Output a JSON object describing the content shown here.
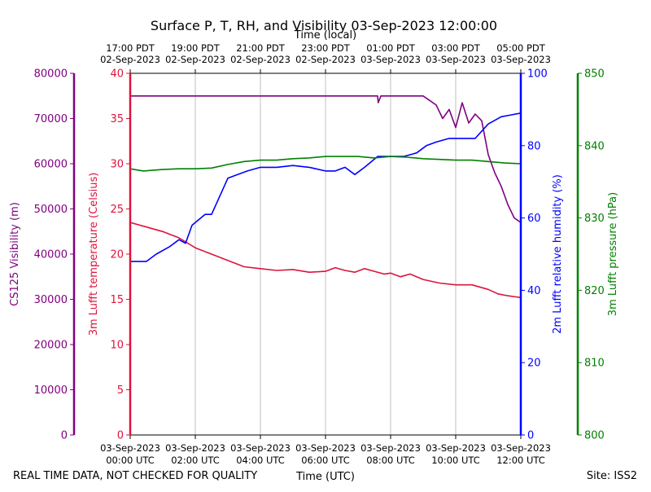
{
  "chart_data": {
    "type": "line",
    "title": "Surface P, T, RH, and Visibility 03-Sep-2023 12:00:00",
    "xlabel": "Time (UTC)",
    "top_xlabel": "Time (local)",
    "x_ticks_utc": [
      {
        "date": "03-Sep-2023",
        "time": "00:00 UTC"
      },
      {
        "date": "03-Sep-2023",
        "time": "02:00 UTC"
      },
      {
        "date": "03-Sep-2023",
        "time": "04:00 UTC"
      },
      {
        "date": "03-Sep-2023",
        "time": "06:00 UTC"
      },
      {
        "date": "03-Sep-2023",
        "time": "08:00 UTC"
      },
      {
        "date": "03-Sep-2023",
        "time": "10:00 UTC"
      },
      {
        "date": "03-Sep-2023",
        "time": "12:00 UTC"
      }
    ],
    "x_ticks_local": [
      {
        "time": "17:00 PDT",
        "date": "02-Sep-2023"
      },
      {
        "time": "19:00 PDT",
        "date": "02-Sep-2023"
      },
      {
        "time": "21:00 PDT",
        "date": "02-Sep-2023"
      },
      {
        "time": "23:00 PDT",
        "date": "02-Sep-2023"
      },
      {
        "time": "01:00 PDT",
        "date": "03-Sep-2023"
      },
      {
        "time": "03:00 PDT",
        "date": "03-Sep-2023"
      },
      {
        "time": "05:00 PDT",
        "date": "03-Sep-2023"
      }
    ],
    "xlim_hours_utc": [
      0,
      12
    ],
    "grid": "x-only",
    "axes": [
      {
        "key": "vis",
        "label": "CS125 Visibility (m)",
        "color": "#800080",
        "ylim": [
          0,
          80000
        ],
        "ticks": [
          0,
          10000,
          20000,
          30000,
          40000,
          50000,
          60000,
          70000,
          80000
        ]
      },
      {
        "key": "temp",
        "label": "3m Lufft temperature (Celsius)",
        "color": "#dc143c",
        "ylim": [
          0,
          40
        ],
        "ticks": [
          0,
          5,
          10,
          15,
          20,
          25,
          30,
          35,
          40
        ]
      },
      {
        "key": "rh",
        "label": "2m Lufft relative humidity (%)",
        "color": "#0000ff",
        "ylim": [
          0,
          100
        ],
        "ticks": [
          0,
          20,
          40,
          60,
          80,
          100
        ]
      },
      {
        "key": "pres",
        "label": "3m Lufft pressure (hPa)",
        "color": "#008000",
        "ylim": [
          800,
          850
        ],
        "ticks": [
          800,
          810,
          820,
          830,
          840,
          850
        ]
      }
    ],
    "series": [
      {
        "axis": "vis",
        "color": "#800080",
        "x": [
          0,
          1,
          2,
          3,
          4,
          5,
          6,
          7,
          7.6,
          7.62,
          7.7,
          8,
          9,
          9.4,
          9.6,
          9.8,
          10,
          10.2,
          10.4,
          10.6,
          10.8,
          11,
          11.2,
          11.4,
          11.6,
          11.8,
          12
        ],
        "y": [
          75000,
          75000,
          75000,
          75000,
          75000,
          75000,
          75000,
          75000,
          75000,
          73500,
          75000,
          75000,
          75000,
          73000,
          70000,
          72000,
          68000,
          73500,
          69000,
          71000,
          69500,
          62000,
          58000,
          55000,
          51000,
          48000,
          47000
        ]
      },
      {
        "axis": "temp",
        "color": "#dc143c",
        "x": [
          0,
          0.5,
          1,
          1.5,
          2,
          2.5,
          3,
          3.5,
          4,
          4.5,
          5,
          5.5,
          6,
          6.3,
          6.6,
          6.9,
          7.2,
          7.5,
          7.8,
          8,
          8.3,
          8.6,
          9,
          9.5,
          10,
          10.5,
          11,
          11.3,
          11.6,
          12
        ],
        "y": [
          23.5,
          23.0,
          22.5,
          21.8,
          20.7,
          20.0,
          19.3,
          18.6,
          18.4,
          18.2,
          18.3,
          18.0,
          18.1,
          18.5,
          18.2,
          18.0,
          18.4,
          18.1,
          17.8,
          17.9,
          17.5,
          17.8,
          17.2,
          16.8,
          16.6,
          16.6,
          16.1,
          15.6,
          15.4,
          15.2
        ]
      },
      {
        "axis": "rh",
        "color": "#0000ff",
        "x": [
          0,
          0.5,
          0.8,
          1.2,
          1.5,
          1.7,
          1.9,
          2.3,
          2.5,
          2.7,
          3.0,
          3.3,
          3.6,
          4.0,
          4.5,
          5.0,
          5.5,
          6.0,
          6.3,
          6.6,
          6.9,
          7.2,
          7.6,
          8.0,
          8.4,
          8.8,
          9.1,
          9.4,
          9.8,
          10.2,
          10.6,
          11.0,
          11.4,
          11.7,
          12
        ],
        "y": [
          48,
          48,
          50,
          52,
          54,
          53,
          58,
          61,
          61,
          65,
          71,
          72,
          73,
          74,
          74,
          74.5,
          74,
          73,
          73,
          74,
          72,
          74,
          77,
          77,
          77,
          78,
          80,
          81,
          82,
          82,
          82,
          86,
          88,
          88.5,
          89
        ]
      },
      {
        "axis": "pres",
        "color": "#008000",
        "x": [
          0,
          0.4,
          1,
          1.5,
          2,
          2.5,
          3,
          3.5,
          4,
          4.5,
          5,
          5.5,
          6,
          6.5,
          7,
          7.5,
          8,
          8.5,
          9,
          9.5,
          10,
          10.5,
          11,
          11.5,
          12
        ],
        "y": [
          836.8,
          836.5,
          836.7,
          836.8,
          836.8,
          836.9,
          837.4,
          837.8,
          838.0,
          838.0,
          838.2,
          838.3,
          838.5,
          838.5,
          838.5,
          838.3,
          838.5,
          838.4,
          838.2,
          838.1,
          838.0,
          838.0,
          837.8,
          837.6,
          837.5
        ]
      }
    ]
  },
  "footer": {
    "left": "REAL TIME DATA, NOT CHECKED FOR QUALITY",
    "right": "Site: ISS2"
  }
}
